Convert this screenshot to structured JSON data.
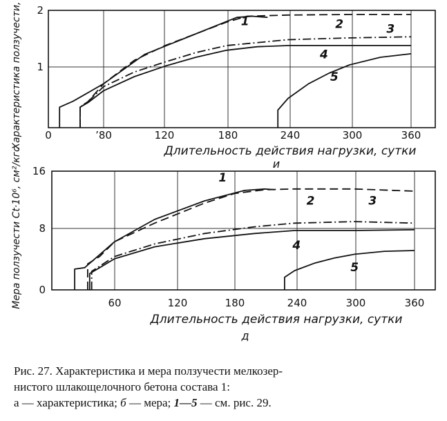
{
  "figure": {
    "caption_lines": [
      "Рис. 27. Характеристика и мера ползучести мелкозер-",
      "нистого шлакощелочного бетона состава 1:"
    ],
    "caption_line3": {
      "part_a": "а — характеристика;",
      "part_b_letter": "б",
      "part_b_text": "— мера;",
      "curves_ref": "1—5",
      "curves_text": "— см. рис. 29."
    }
  },
  "chart_data": [
    {
      "type": "line",
      "panel_marker": "и",
      "xlabel": "Длительность действия нагрузки, сутки",
      "ylabel": "Характеристика ползучести, φt",
      "x_ticks": [
        "0",
        "ʼ80",
        "120",
        "180",
        "240",
        "300",
        "360"
      ],
      "y_ticks": [
        "1",
        "2"
      ],
      "xlim": [
        0,
        382
      ],
      "ylim": [
        0,
        2
      ],
      "grid": true,
      "series": [
        {
          "name": "1",
          "style": "solid",
          "x": [
            17,
            17,
            30,
            60,
            100,
            150,
            190,
            205,
            220
          ],
          "y": [
            0,
            0.35,
            0.45,
            0.75,
            1.25,
            1.6,
            1.88,
            1.9,
            1.88
          ]
        },
        {
          "name": "2",
          "style": "dashed",
          "x": [
            37,
            37,
            45,
            60,
            90,
            120,
            150,
            180,
            200,
            240,
            300,
            360
          ],
          "y": [
            0,
            0.35,
            0.45,
            0.75,
            1.15,
            1.4,
            1.6,
            1.8,
            1.9,
            1.92,
            1.93,
            1.93
          ]
        },
        {
          "name": "3",
          "style": "dashdot",
          "x": [
            37,
            37,
            45,
            60,
            90,
            120,
            150,
            180,
            240,
            300,
            360
          ],
          "y": [
            0,
            0.35,
            0.45,
            0.7,
            0.95,
            1.12,
            1.28,
            1.4,
            1.5,
            1.53,
            1.55
          ]
        },
        {
          "name": "4",
          "style": "solid",
          "x": [
            37,
            37,
            45,
            60,
            90,
            120,
            150,
            180,
            210,
            240,
            300,
            360
          ],
          "y": [
            0,
            0.35,
            0.43,
            0.63,
            0.87,
            1.05,
            1.2,
            1.32,
            1.38,
            1.4,
            1.4,
            1.4
          ]
        },
        {
          "name": "5",
          "style": "solid",
          "x": [
            230,
            230,
            240,
            260,
            280,
            300,
            330,
            360
          ],
          "y": [
            0,
            0.3,
            0.5,
            0.75,
            0.93,
            1.07,
            1.2,
            1.26
          ]
        }
      ],
      "labels": [
        {
          "text": "1",
          "x": 198,
          "y": 1.75
        },
        {
          "text": "2",
          "x": 290,
          "y": 1.7
        },
        {
          "text": "3",
          "x": 340,
          "y": 1.62
        },
        {
          "text": "4",
          "x": 275,
          "y": 1.18
        },
        {
          "text": "5",
          "x": 285,
          "y": 0.8
        }
      ]
    },
    {
      "type": "line",
      "panel_marker": "д",
      "xlabel": "Длительность действия нагрузки, сутки",
      "ylabel": "Мера ползучести Ct·10⁶, см²/кгс",
      "x_ticks": [
        "60",
        "120",
        "180",
        "240",
        "300",
        "360"
      ],
      "y_ticks": [
        "0",
        "8",
        "16"
      ],
      "xlim": [
        0,
        382
      ],
      "ylim": [
        0,
        16
      ],
      "grid": true,
      "series": [
        {
          "name": "1",
          "style": "solid",
          "x": [
            20,
            20,
            30,
            60,
            100,
            150,
            190,
            210,
            220
          ],
          "y": [
            0,
            2.8,
            3.0,
            6.5,
            9.5,
            12.0,
            13.4,
            13.6,
            13.5
          ]
        },
        {
          "name": "2",
          "style": "dashed",
          "x": [
            33,
            33,
            45,
            60,
            100,
            150,
            180,
            210,
            240,
            300,
            360
          ],
          "y": [
            0,
            3.5,
            4.5,
            6.5,
            9.0,
            11.7,
            13.0,
            13.5,
            13.6,
            13.6,
            13.3
          ]
        },
        {
          "name": "3",
          "style": "dashdot",
          "x": [
            37,
            37,
            45,
            60,
            100,
            150,
            200,
            240,
            300,
            360
          ],
          "y": [
            0,
            2.5,
            3.2,
            4.5,
            6.2,
            7.6,
            8.5,
            9.0,
            9.2,
            9.0
          ]
        },
        {
          "name": "4",
          "style": "solid",
          "x": [
            35,
            35,
            45,
            60,
            100,
            150,
            200,
            240,
            300,
            360
          ],
          "y": [
            0,
            2.2,
            3.0,
            4.2,
            5.8,
            6.9,
            7.6,
            8.0,
            8.0,
            8.1
          ]
        },
        {
          "name": "5",
          "style": "solid",
          "x": [
            230,
            230,
            240,
            260,
            280,
            300,
            330,
            360
          ],
          "y": [
            0,
            1.7,
            2.6,
            3.6,
            4.3,
            4.8,
            5.2,
            5.3
          ]
        }
      ],
      "labels": [
        {
          "text": "1",
          "x": 168,
          "y": 14.6
        },
        {
          "text": "2",
          "x": 256,
          "y": 11.5
        },
        {
          "text": "3",
          "x": 318,
          "y": 11.5
        },
        {
          "text": "4",
          "x": 242,
          "y": 5.5
        },
        {
          "text": "5",
          "x": 300,
          "y": 2.5
        }
      ]
    }
  ]
}
